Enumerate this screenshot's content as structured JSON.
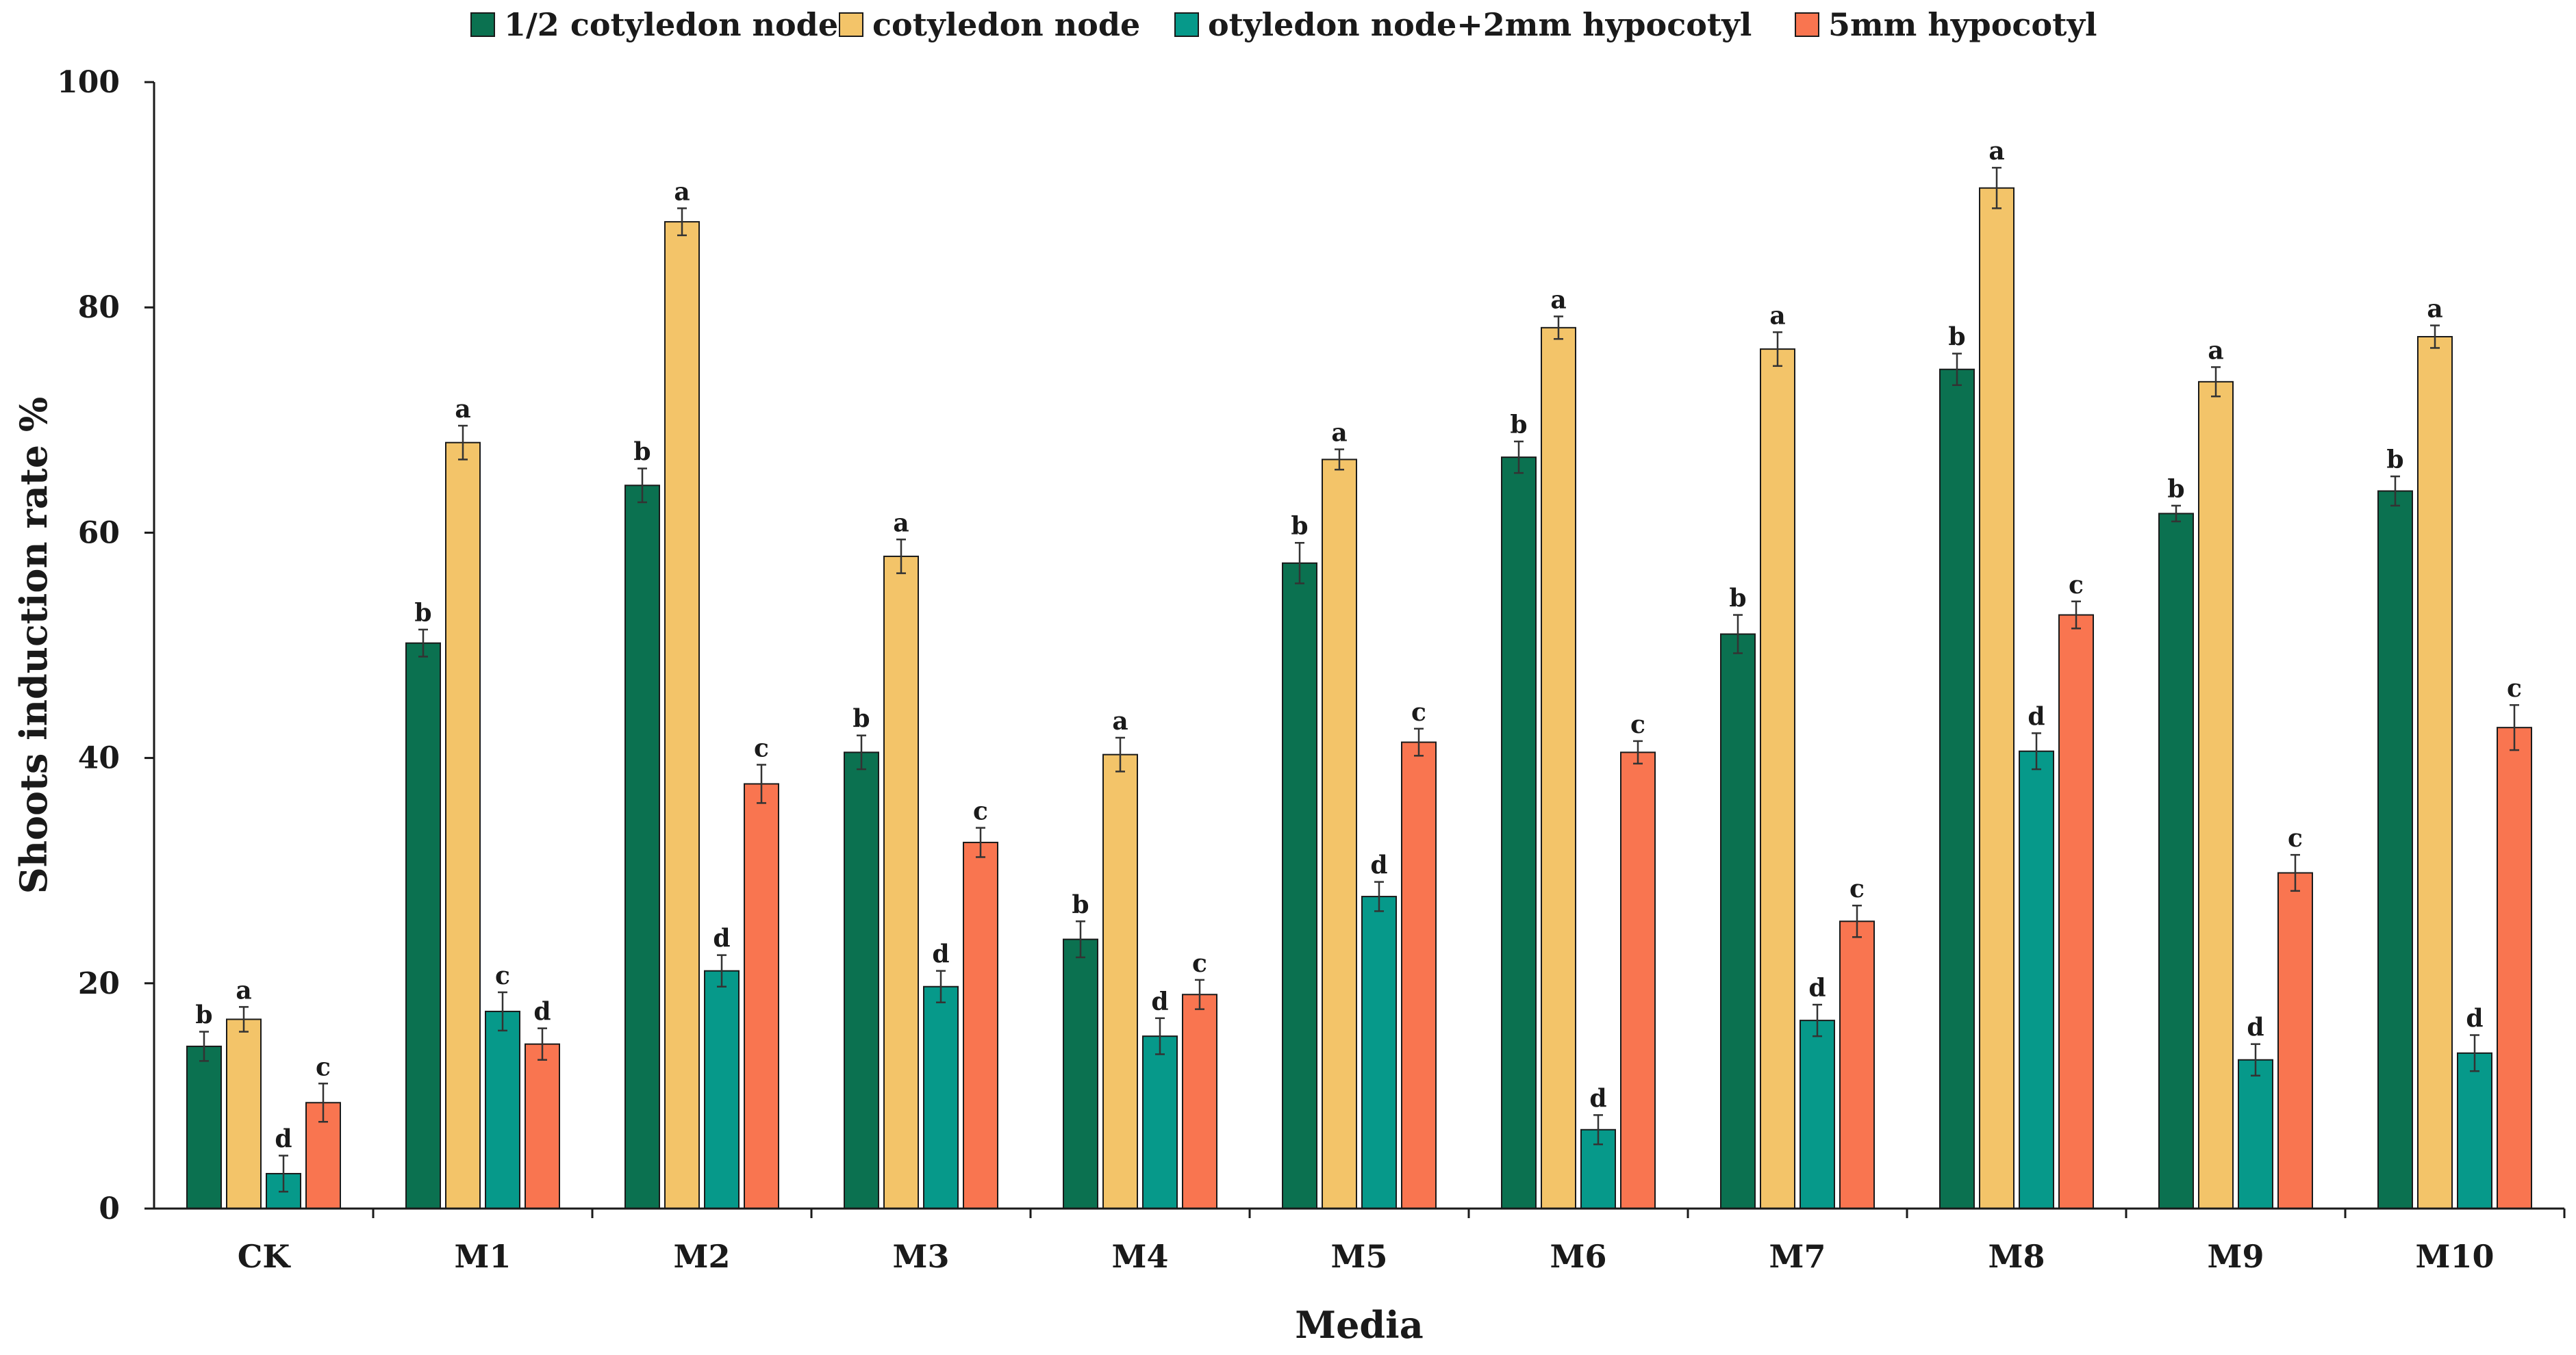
{
  "chart_data": {
    "type": "bar",
    "title": "",
    "xlabel": "Media",
    "ylabel": "Shoots induction rate %",
    "ylim": [
      0,
      100
    ],
    "yticks": [
      0,
      20,
      40,
      60,
      80,
      100
    ],
    "grid": false,
    "legend_position": "top",
    "categories": [
      "CK",
      "M1",
      "M2",
      "M3",
      "M4",
      "M5",
      "M6",
      "M7",
      "M8",
      "M9",
      "M10"
    ],
    "series": [
      {
        "name": "1/2 cotyledon node",
        "color": "#0b7150",
        "values": [
          14.4,
          50.2,
          64.2,
          40.5,
          23.9,
          57.3,
          66.7,
          51.0,
          74.5,
          61.7,
          63.7
        ],
        "errors": [
          1.3,
          1.2,
          1.5,
          1.5,
          1.6,
          1.8,
          1.4,
          1.7,
          1.4,
          0.7,
          1.3
        ],
        "letters": [
          "b",
          "b",
          "b",
          "b",
          "b",
          "b",
          "b",
          "b",
          "b",
          "b",
          "b"
        ]
      },
      {
        "name": "cotyledon node",
        "color": "#f3c469",
        "values": [
          16.8,
          68.0,
          87.6,
          57.9,
          40.3,
          66.5,
          78.2,
          76.3,
          90.6,
          73.4,
          77.4
        ],
        "errors": [
          1.1,
          1.5,
          1.2,
          1.5,
          1.5,
          0.9,
          1.0,
          1.5,
          1.8,
          1.3,
          1.0
        ],
        "letters": [
          "a",
          "a",
          "a",
          "a",
          "a",
          "a",
          "a",
          "a",
          "a",
          "a",
          "a"
        ]
      },
      {
        "name": "otyledon node+2mm hypocotyl",
        "color": "#06998a",
        "values": [
          3.1,
          17.5,
          21.1,
          19.7,
          15.3,
          27.7,
          7.0,
          16.7,
          40.6,
          13.2,
          13.8
        ],
        "errors": [
          1.6,
          1.7,
          1.4,
          1.4,
          1.6,
          1.3,
          1.3,
          1.4,
          1.6,
          1.4,
          1.6
        ],
        "letters": [
          "d",
          "c",
          "d",
          "d",
          "d",
          "d",
          "d",
          "d",
          "d",
          "d",
          "d"
        ]
      },
      {
        "name": "5mm hypocotyl",
        "color": "#f97550",
        "values": [
          9.4,
          14.6,
          37.7,
          32.5,
          19.0,
          41.4,
          40.5,
          25.5,
          52.7,
          29.8,
          42.7
        ],
        "errors": [
          1.7,
          1.4,
          1.7,
          1.3,
          1.3,
          1.2,
          1.0,
          1.4,
          1.2,
          1.6,
          2.0
        ],
        "letters": [
          "c",
          "d",
          "c",
          "c",
          "c",
          "c",
          "c",
          "c",
          "c",
          "c",
          "c"
        ]
      }
    ]
  }
}
